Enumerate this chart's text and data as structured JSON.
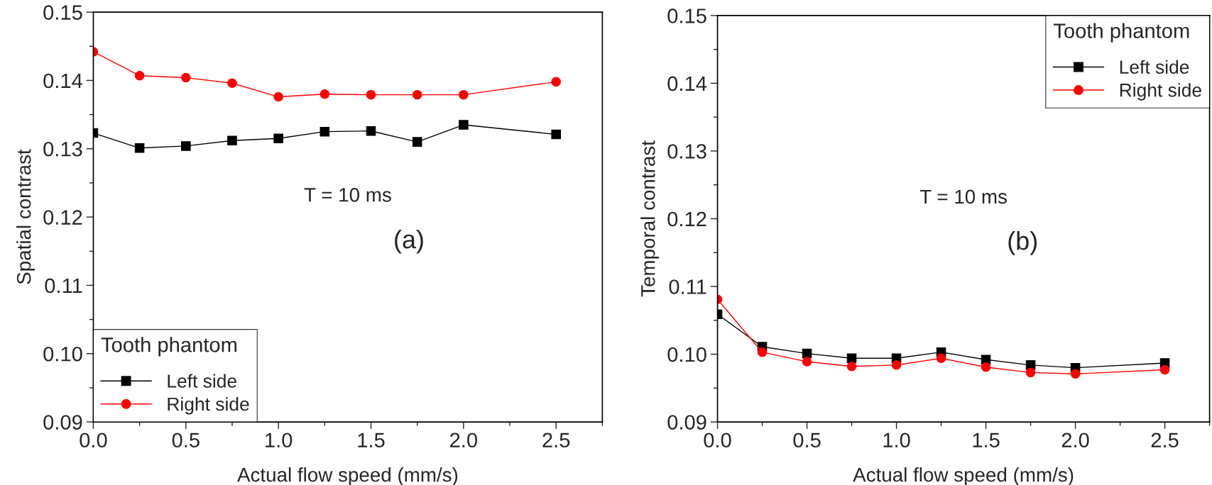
{
  "chart_data": [
    {
      "type": "line",
      "xlabel": "Actual flow speed (mm/s)",
      "ylabel": "Spatial contrast",
      "legend_title": "Tooth phantom",
      "annotations": [
        "T = 10 ms",
        "(a)"
      ],
      "x": [
        0,
        0.25,
        0.5,
        0.75,
        1.0,
        1.25,
        1.5,
        1.75,
        2.0,
        2.5
      ],
      "series": [
        {
          "name": "Left side",
          "color": "#000000",
          "marker": "square",
          "values": [
            0.1323,
            0.1301,
            0.1304,
            0.1312,
            0.1315,
            0.1325,
            0.1326,
            0.131,
            0.1335,
            0.1321
          ]
        },
        {
          "name": "Right side",
          "color": "#ff0000",
          "marker": "circle",
          "values": [
            0.1442,
            0.1407,
            0.1404,
            0.1396,
            0.1376,
            0.138,
            0.1379,
            0.1379,
            0.1379,
            0.1398
          ]
        }
      ],
      "xlim": [
        0,
        2.75
      ],
      "xticks": [
        {
          "value": 0,
          "label": "0.0"
        },
        0.5,
        {
          "value": 1,
          "label": "1.0"
        },
        1.5,
        {
          "value": 2,
          "label": "2.0"
        },
        2.5
      ],
      "ylim": [
        0.09,
        0.15
      ],
      "yticks": [
        0.09,
        {
          "value": 0.1,
          "label": "0.10"
        },
        0.11,
        0.12,
        0.13,
        0.14,
        0.15
      ],
      "grid": false,
      "legend": "bottom left"
    },
    {
      "type": "line",
      "xlabel": "Actual flow speed (mm/s)",
      "ylabel": "Temporal contrast",
      "legend_title": "Tooth phantom",
      "annotations": [
        "T = 10 ms",
        "(b)"
      ],
      "x": [
        0,
        0.25,
        0.5,
        0.75,
        1.0,
        1.25,
        1.5,
        1.75,
        2.0,
        2.5
      ],
      "series": [
        {
          "name": "Left side",
          "color": "#000000",
          "marker": "square",
          "values": [
            0.1059,
            0.1011,
            0.1001,
            0.0994,
            0.0994,
            0.1003,
            0.0992,
            0.0984,
            0.098,
            0.0987
          ]
        },
        {
          "name": "Right side",
          "color": "#ff0000",
          "marker": "circle",
          "values": [
            0.1081,
            0.1003,
            0.0989,
            0.0982,
            0.0984,
            0.0994,
            0.0981,
            0.0973,
            0.0971,
            0.0977
          ]
        }
      ],
      "xlim": [
        0,
        2.75
      ],
      "xticks": [
        {
          "value": 0,
          "label": "0.0"
        },
        0.5,
        {
          "value": 1,
          "label": "1.0"
        },
        1.5,
        {
          "value": 2,
          "label": "2.0"
        },
        2.5
      ],
      "ylim": [
        0.09,
        0.15
      ],
      "yticks": [
        0.09,
        {
          "value": 0.1,
          "label": "0.10"
        },
        0.11,
        0.12,
        0.13,
        0.14,
        0.15
      ],
      "grid": false,
      "legend": "top right"
    }
  ]
}
